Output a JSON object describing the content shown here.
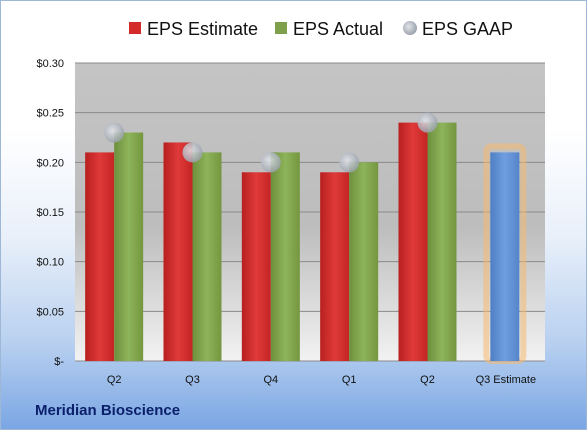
{
  "company": "Meridian Bioscience",
  "colors": {
    "estimate": "#d42a2a",
    "actual": "#7ea04a",
    "gaap": "#b9bec6",
    "projection": "#5b8fd4",
    "projection_glow": "#f5b870"
  },
  "chart_data": {
    "type": "bar",
    "categories": [
      "Q2",
      "Q3",
      "Q4",
      "Q1",
      "Q2",
      "Q3 Estimate"
    ],
    "legend": [
      "EPS Estimate",
      "EPS Actual",
      "EPS GAAP"
    ],
    "series": [
      {
        "name": "EPS Estimate",
        "values": [
          0.21,
          0.22,
          0.19,
          0.19,
          0.24,
          null
        ]
      },
      {
        "name": "EPS Actual",
        "values": [
          0.23,
          0.21,
          0.21,
          0.2,
          0.24,
          0.21
        ]
      },
      {
        "name": "EPS GAAP",
        "values": [
          0.23,
          0.21,
          0.2,
          0.2,
          0.24,
          null
        ]
      }
    ],
    "projection_category": "Q3 Estimate",
    "ylim": [
      0,
      0.3
    ],
    "yticks": [
      0,
      0.05,
      0.1,
      0.15,
      0.2,
      0.25,
      0.3
    ],
    "ytick_labels": [
      "$-",
      "$0.05",
      "$0.10",
      "$0.15",
      "$0.20",
      "$0.25",
      "$0.30"
    ],
    "grid": true,
    "legend_position": "top"
  }
}
